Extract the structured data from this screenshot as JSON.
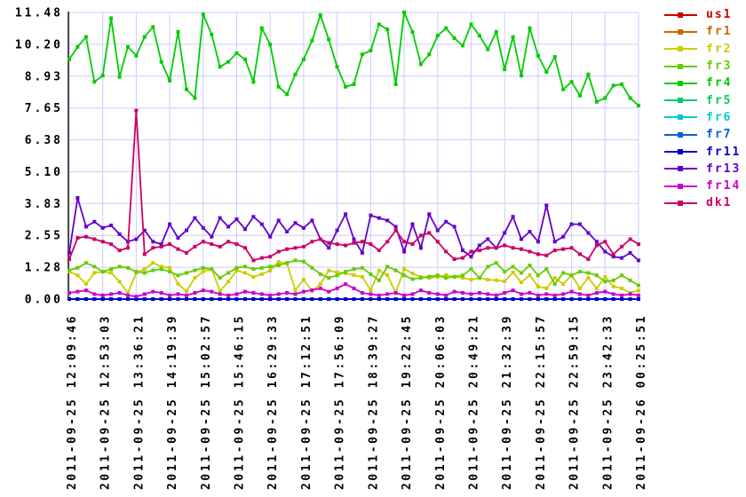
{
  "chart": {
    "background_color": "#ffffff",
    "grid_color": "#ccccff",
    "axis_color": "#4d4d4d",
    "label_color": "#000000"
  },
  "chart_data": {
    "type": "line",
    "title": "",
    "xlabel": "",
    "ylabel": "",
    "grid": true,
    "legend_position": "top-right",
    "ylim": [
      0,
      11.48
    ],
    "points_per_label": 4,
    "y_ticks": [
      {
        "v": 0,
        "label": "0.00"
      },
      {
        "v": 1.2756,
        "label": "1.28"
      },
      {
        "v": 2.5511,
        "label": "2.55"
      },
      {
        "v": 3.8267,
        "label": "3.83"
      },
      {
        "v": 5.1022,
        "label": "5.10"
      },
      {
        "v": 6.3778,
        "label": "6.38"
      },
      {
        "v": 7.6533,
        "label": "7.65"
      },
      {
        "v": 8.9289,
        "label": "8.93"
      },
      {
        "v": 10.2044,
        "label": "10.20"
      },
      {
        "v": 11.48,
        "label": "11.48"
      }
    ],
    "x_labels": [
      "2011-09-25 12:09:46",
      "2011-09-25 12:53:03",
      "2011-09-25 13:36:21",
      "2011-09-25 14:19:39",
      "2011-09-25 15:02:57",
      "2011-09-25 15:46:15",
      "2011-09-25 16:29:33",
      "2011-09-25 17:12:51",
      "2011-09-25 17:56:09",
      "2011-09-25 18:39:27",
      "2011-09-25 19:22:45",
      "2011-09-25 20:06:03",
      "2011-09-25 20:49:21",
      "2011-09-25 21:32:39",
      "2011-09-25 22:15:57",
      "2011-09-25 22:59:15",
      "2011-09-25 23:42:33",
      "2011-09-26 00:25:51"
    ],
    "series": [
      {
        "name": "us1",
        "color": "#cc0000",
        "values": [
          0,
          0,
          0,
          0,
          0,
          0,
          0,
          0,
          0,
          0,
          0,
          0,
          0,
          0,
          0,
          0,
          0,
          0,
          0,
          0,
          0,
          0,
          0,
          0,
          0,
          0,
          0,
          0,
          0,
          0,
          0,
          0,
          0,
          0,
          0,
          0,
          0,
          0,
          0,
          0,
          0,
          0,
          0,
          0,
          0,
          0,
          0,
          0,
          0,
          0,
          0,
          0,
          0,
          0,
          0,
          0,
          0,
          0,
          0,
          0,
          0,
          0,
          0,
          0,
          0,
          0,
          0,
          0,
          0
        ]
      },
      {
        "name": "fr1",
        "color": "#cc6600",
        "values": [
          0,
          0,
          0,
          0,
          0,
          0,
          0,
          0,
          0,
          0,
          0,
          0,
          0,
          0,
          0,
          0,
          0,
          0,
          0,
          0,
          0,
          0,
          0,
          0,
          0,
          0,
          0,
          0,
          0,
          0,
          0,
          0,
          0,
          0,
          0,
          0,
          0,
          0,
          0,
          0,
          0,
          0,
          0,
          0,
          0,
          0,
          0,
          0,
          0,
          0,
          0,
          0,
          0,
          0,
          0,
          0,
          0,
          0,
          0,
          0,
          0,
          0,
          0,
          0,
          0,
          0,
          0,
          0,
          0
        ]
      },
      {
        "name": "fr2",
        "color": "#cccc00",
        "values": [
          1.1,
          0.95,
          0.6,
          1.05,
          1.1,
          1.05,
          0.7,
          0.25,
          1.05,
          1.2,
          1.45,
          1.3,
          1.25,
          0.6,
          0.32,
          0.85,
          1.1,
          1.2,
          0.32,
          0.7,
          1.14,
          1.05,
          0.89,
          1.0,
          1.14,
          1.49,
          1.42,
          0.36,
          0.78,
          0.32,
          0.6,
          1.14,
          1.07,
          1.03,
          0.96,
          0.89,
          0.36,
          1.14,
          0.96,
          0.25,
          1.21,
          1.03,
          0.89,
          0.85,
          0.89,
          0.96,
          0.89,
          0.85,
          0.78,
          0.85,
          0.78,
          0.75,
          0.71,
          1.07,
          0.67,
          0.96,
          0.5,
          0.43,
          0.85,
          0.6,
          0.96,
          0.43,
          0.85,
          0.43,
          0.89,
          0.5,
          0.43,
          0.25,
          0.35
        ]
      },
      {
        "name": "fr3",
        "color": "#66cc00",
        "values": [
          1.15,
          1.25,
          1.45,
          1.3,
          1.1,
          1.2,
          1.3,
          1.25,
          1.1,
          1.05,
          1.15,
          1.2,
          1.1,
          0.95,
          1.05,
          1.15,
          1.25,
          1.2,
          0.85,
          1.05,
          1.25,
          1.3,
          1.2,
          1.25,
          1.3,
          1.35,
          1.45,
          1.55,
          1.5,
          1.25,
          1.0,
          0.85,
          0.95,
          1.1,
          1.2,
          1.25,
          1.0,
          0.75,
          1.3,
          1.15,
          0.95,
          0.8,
          0.85,
          0.9,
          0.95,
          0.85,
          0.9,
          0.95,
          1.2,
          0.85,
          1.3,
          1.45,
          1.1,
          1.3,
          1.05,
          1.35,
          0.95,
          1.2,
          0.6,
          1.05,
          0.95,
          1.1,
          1.05,
          0.95,
          0.7,
          0.75,
          0.95,
          0.75,
          0.55
        ]
      },
      {
        "name": "fr4",
        "color": "#00cc00",
        "values": [
          9.6,
          10.1,
          10.5,
          8.7,
          8.95,
          11.25,
          8.9,
          10.1,
          9.75,
          10.5,
          10.9,
          9.5,
          8.75,
          10.7,
          8.4,
          8.05,
          11.4,
          10.6,
          9.3,
          9.5,
          9.85,
          9.6,
          8.7,
          10.85,
          10.2,
          8.5,
          8.2,
          9.0,
          9.6,
          10.35,
          11.37,
          10.4,
          9.3,
          8.5,
          8.6,
          9.8,
          9.95,
          11.0,
          10.8,
          8.6,
          11.48,
          10.7,
          9.4,
          9.8,
          10.55,
          10.85,
          10.45,
          10.15,
          11.0,
          10.55,
          10.0,
          10.7,
          9.2,
          10.5,
          8.95,
          10.85,
          9.75,
          9.1,
          9.7,
          8.4,
          8.7,
          8.15,
          9.0,
          7.9,
          8.05,
          8.55,
          8.6,
          8.05,
          7.75
        ]
      },
      {
        "name": "fr5",
        "color": "#00cc66",
        "values": [
          0,
          0,
          0,
          0,
          0,
          0,
          0,
          0,
          0,
          0,
          0,
          0,
          0,
          0,
          0,
          0,
          0,
          0,
          0,
          0,
          0,
          0,
          0,
          0,
          0,
          0,
          0,
          0,
          0,
          0,
          0,
          0,
          0,
          0,
          0,
          0,
          0,
          0,
          0,
          0,
          0,
          0,
          0,
          0,
          0,
          0,
          0,
          0,
          0,
          0,
          0,
          0,
          0,
          0,
          0,
          0,
          0,
          0,
          0,
          0,
          0,
          0,
          0,
          0,
          0,
          0,
          0,
          0,
          0
        ]
      },
      {
        "name": "fr6",
        "color": "#00cccc",
        "values": [
          0,
          0,
          0,
          0,
          0,
          0,
          0,
          0,
          0,
          0,
          0,
          0,
          0,
          0,
          0,
          0,
          0,
          0,
          0,
          0,
          0,
          0,
          0,
          0,
          0,
          0,
          0,
          0,
          0,
          0,
          0,
          0,
          0,
          0,
          0,
          0,
          0,
          0,
          0,
          0,
          0,
          0,
          0,
          0,
          0,
          0,
          0,
          0,
          0,
          0,
          0,
          0,
          0,
          0,
          0,
          0,
          0,
          0,
          0,
          0,
          0,
          0,
          0,
          0,
          0,
          0,
          0,
          0,
          0
        ]
      },
      {
        "name": "fr7",
        "color": "#0066cc",
        "values": [
          0,
          0,
          0,
          0,
          0,
          0,
          0,
          0,
          0,
          0,
          0,
          0,
          0,
          0,
          0,
          0,
          0,
          0,
          0,
          0,
          0,
          0,
          0,
          0,
          0,
          0,
          0,
          0,
          0,
          0,
          0,
          0,
          0,
          0,
          0,
          0,
          0,
          0,
          0,
          0,
          0,
          0,
          0,
          0,
          0,
          0,
          0,
          0,
          0,
          0,
          0,
          0,
          0,
          0,
          0,
          0,
          0,
          0,
          0,
          0,
          0,
          0,
          0,
          0,
          0,
          0,
          0,
          0,
          0
        ]
      },
      {
        "name": "fr11",
        "color": "#0000cc",
        "values": [
          0,
          0,
          0,
          0,
          0,
          0,
          0,
          0,
          0,
          0,
          0,
          0,
          0,
          0,
          0,
          0,
          0,
          0,
          0,
          0,
          0,
          0,
          0,
          0,
          0,
          0,
          0,
          0,
          0,
          0,
          0,
          0,
          0,
          0,
          0,
          0,
          0,
          0,
          0,
          0,
          0,
          0,
          0,
          0,
          0,
          0,
          0,
          0,
          0,
          0,
          0,
          0,
          0,
          0,
          0,
          0,
          0,
          0,
          0,
          0,
          0,
          0,
          0,
          0,
          0,
          0,
          0,
          0,
          0
        ]
      },
      {
        "name": "fr13",
        "color": "#6600cc",
        "values": [
          1.85,
          4.05,
          2.9,
          3.1,
          2.85,
          2.95,
          2.6,
          2.3,
          2.4,
          2.75,
          2.3,
          2.2,
          3.0,
          2.45,
          2.75,
          3.25,
          2.85,
          2.5,
          3.25,
          2.9,
          3.2,
          2.8,
          3.3,
          3.0,
          2.5,
          3.15,
          2.7,
          3.05,
          2.85,
          3.15,
          2.4,
          2.05,
          2.75,
          3.4,
          2.4,
          1.85,
          3.35,
          3.25,
          3.15,
          2.9,
          1.9,
          3.0,
          2.05,
          3.4,
          2.75,
          3.1,
          2.9,
          1.95,
          1.7,
          2.15,
          2.4,
          2.05,
          2.65,
          3.3,
          2.4,
          2.7,
          2.3,
          3.75,
          2.3,
          2.5,
          3.0,
          3.0,
          2.65,
          2.3,
          1.9,
          1.7,
          1.65,
          1.85,
          1.55
        ]
      },
      {
        "name": "fr14",
        "color": "#cc00cc",
        "values": [
          0.25,
          0.3,
          0.35,
          0.2,
          0.15,
          0.2,
          0.25,
          0.15,
          0.1,
          0.2,
          0.3,
          0.25,
          0.15,
          0.2,
          0.15,
          0.25,
          0.35,
          0.3,
          0.2,
          0.15,
          0.2,
          0.3,
          0.25,
          0.2,
          0.15,
          0.2,
          0.25,
          0.2,
          0.3,
          0.36,
          0.43,
          0.3,
          0.43,
          0.6,
          0.43,
          0.25,
          0.2,
          0.15,
          0.2,
          0.25,
          0.15,
          0.2,
          0.35,
          0.25,
          0.2,
          0.15,
          0.3,
          0.25,
          0.2,
          0.25,
          0.2,
          0.15,
          0.25,
          0.35,
          0.2,
          0.25,
          0.15,
          0.2,
          0.15,
          0.2,
          0.3,
          0.2,
          0.15,
          0.25,
          0.3,
          0.2,
          0.15,
          0.2,
          0.15
        ]
      },
      {
        "name": "dk1",
        "color": "#cc0066",
        "values": [
          1.6,
          2.45,
          2.5,
          2.4,
          2.3,
          2.2,
          1.95,
          2.05,
          7.55,
          1.8,
          2.05,
          2.1,
          2.2,
          2.0,
          1.85,
          2.1,
          2.3,
          2.2,
          2.1,
          2.3,
          2.2,
          2.05,
          1.55,
          1.65,
          1.7,
          1.9,
          2.0,
          2.05,
          2.1,
          2.3,
          2.4,
          2.25,
          2.2,
          2.15,
          2.25,
          2.3,
          2.2,
          1.95,
          2.3,
          2.75,
          2.3,
          2.2,
          2.55,
          2.65,
          2.3,
          1.9,
          1.6,
          1.65,
          1.9,
          1.95,
          2.05,
          2.05,
          2.15,
          2.05,
          2.0,
          1.9,
          1.8,
          1.75,
          1.95,
          2.0,
          2.05,
          1.8,
          1.6,
          2.15,
          2.3,
          1.8,
          2.1,
          2.4,
          2.2
        ]
      }
    ]
  }
}
